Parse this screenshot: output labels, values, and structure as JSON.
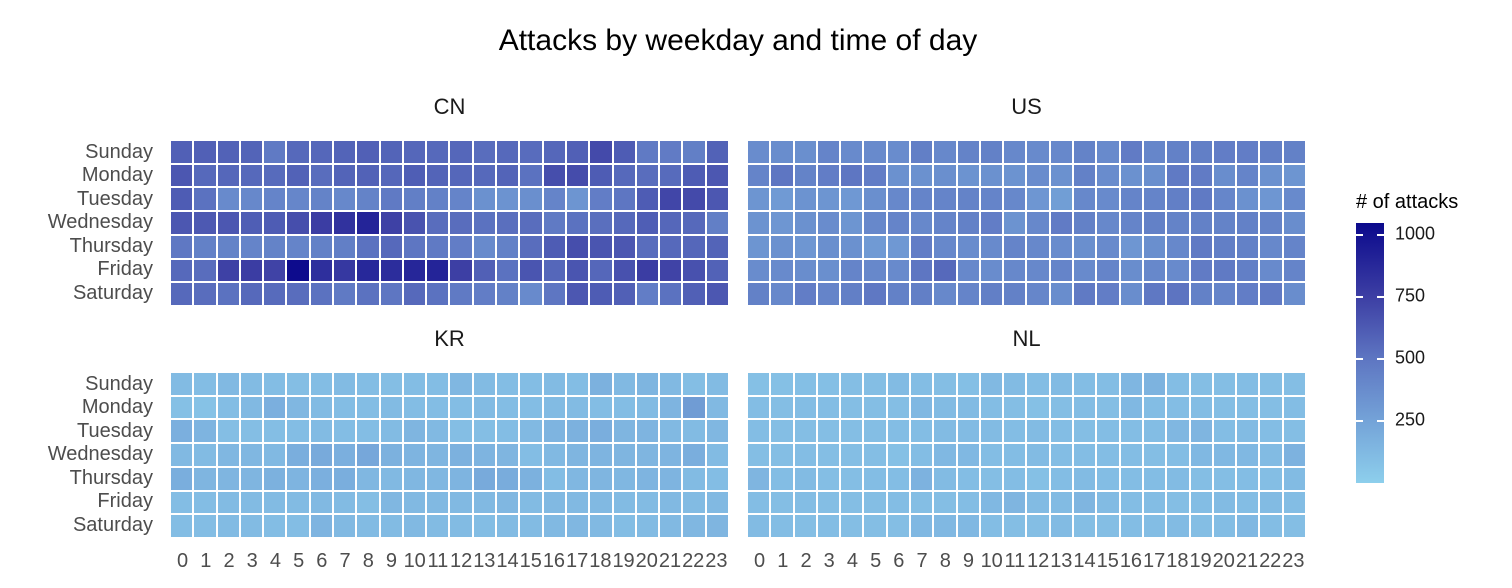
{
  "chart_data": {
    "type": "heatmap",
    "title": "Attacks by weekday and time of day",
    "legend": {
      "title": "# of attacks",
      "ticks": [
        1000,
        750,
        500,
        250
      ],
      "domain": [
        0,
        1050
      ],
      "gradient_stops": [
        {
          "value": 0,
          "color": "#8DCFEC"
        },
        {
          "value": 250,
          "color": "#74A3D8"
        },
        {
          "value": 500,
          "color": "#5E76C2"
        },
        {
          "value": 750,
          "color": "#3D3FA4"
        },
        {
          "value": 1050,
          "color": "#0B098C"
        }
      ]
    },
    "y_categories": [
      "Sunday",
      "Monday",
      "Tuesday",
      "Wednesday",
      "Thursday",
      "Friday",
      "Saturday"
    ],
    "x_categories": [
      "0",
      "1",
      "2",
      "3",
      "4",
      "5",
      "6",
      "7",
      "8",
      "9",
      "10",
      "11",
      "12",
      "13",
      "14",
      "15",
      "16",
      "17",
      "18",
      "19",
      "20",
      "21",
      "22",
      "23"
    ],
    "facets": [
      {
        "id": "cn",
        "label": "CN",
        "values": [
          [
            600,
            600,
            590,
            580,
            480,
            560,
            570,
            580,
            600,
            580,
            570,
            560,
            570,
            540,
            560,
            545,
            570,
            600,
            700,
            620,
            480,
            470,
            450,
            590
          ],
          [
            640,
            560,
            570,
            560,
            550,
            590,
            540,
            580,
            590,
            570,
            610,
            580,
            570,
            560,
            580,
            520,
            680,
            690,
            620,
            560,
            540,
            550,
            620,
            640
          ],
          [
            620,
            520,
            390,
            400,
            420,
            410,
            430,
            400,
            430,
            480,
            450,
            440,
            420,
            350,
            340,
            360,
            420,
            330,
            460,
            500,
            620,
            720,
            700,
            640
          ],
          [
            640,
            630,
            640,
            610,
            620,
            680,
            760,
            820,
            900,
            740,
            660,
            540,
            540,
            520,
            530,
            540,
            480,
            520,
            530,
            560,
            610,
            570,
            560,
            450
          ],
          [
            490,
            440,
            430,
            420,
            430,
            420,
            440,
            450,
            520,
            560,
            500,
            480,
            460,
            390,
            440,
            540,
            620,
            680,
            650,
            640,
            540,
            560,
            570,
            580
          ],
          [
            560,
            540,
            740,
            760,
            730,
            1040,
            840,
            790,
            880,
            850,
            890,
            900,
            750,
            600,
            520,
            650,
            570,
            650,
            570,
            670,
            760,
            730,
            670,
            590
          ],
          [
            560,
            540,
            520,
            560,
            550,
            540,
            520,
            480,
            520,
            500,
            560,
            520,
            480,
            460,
            440,
            390,
            500,
            640,
            620,
            600,
            460,
            520,
            600,
            640
          ]
        ]
      },
      {
        "id": "us",
        "label": "US",
        "values": [
          [
            380,
            370,
            360,
            420,
            390,
            390,
            380,
            450,
            400,
            430,
            440,
            400,
            390,
            400,
            430,
            390,
            470,
            410,
            440,
            450,
            460,
            460,
            450,
            440
          ],
          [
            420,
            500,
            430,
            460,
            500,
            460,
            350,
            350,
            360,
            340,
            350,
            340,
            380,
            350,
            440,
            380,
            350,
            360,
            480,
            470,
            370,
            420,
            350,
            330
          ],
          [
            330,
            300,
            340,
            330,
            310,
            360,
            400,
            420,
            420,
            430,
            420,
            400,
            320,
            280,
            400,
            390,
            420,
            420,
            450,
            480,
            410,
            350,
            320,
            390
          ],
          [
            340,
            320,
            350,
            380,
            330,
            400,
            420,
            400,
            420,
            440,
            460,
            340,
            400,
            470,
            440,
            400,
            420,
            440,
            430,
            440,
            430,
            440,
            430,
            370
          ],
          [
            330,
            350,
            320,
            360,
            350,
            300,
            310,
            460,
            400,
            380,
            390,
            420,
            400,
            380,
            360,
            390,
            320,
            360,
            400,
            480,
            450,
            440,
            400,
            420
          ],
          [
            380,
            390,
            370,
            360,
            420,
            400,
            390,
            500,
            560,
            400,
            380,
            400,
            400,
            420,
            390,
            420,
            370,
            400,
            390,
            470,
            480,
            450,
            390,
            420
          ],
          [
            440,
            400,
            460,
            420,
            450,
            490,
            440,
            450,
            400,
            420,
            450,
            440,
            410,
            370,
            480,
            460,
            370,
            490,
            510,
            440,
            420,
            460,
            480,
            370
          ]
        ]
      },
      {
        "id": "kr",
        "label": "KR",
        "values": [
          [
            115,
            105,
            125,
            115,
            105,
            95,
            105,
            115,
            105,
            95,
            105,
            105,
            135,
            115,
            105,
            105,
            115,
            105,
            170,
            125,
            148,
            125,
            95,
            115
          ],
          [
            85,
            75,
            105,
            125,
            180,
            135,
            115,
            105,
            105,
            115,
            105,
            105,
            105,
            115,
            105,
            105,
            115,
            115,
            105,
            105,
            115,
            155,
            290,
            125
          ],
          [
            180,
            155,
            95,
            95,
            95,
            105,
            115,
            105,
            105,
            115,
            145,
            125,
            95,
            95,
            105,
            125,
            155,
            170,
            190,
            145,
            155,
            125,
            115,
            135
          ],
          [
            125,
            115,
            135,
            135,
            125,
            190,
            210,
            180,
            230,
            170,
            155,
            145,
            170,
            155,
            145,
            105,
            125,
            145,
            155,
            145,
            145,
            155,
            190,
            115
          ],
          [
            190,
            145,
            145,
            145,
            170,
            155,
            180,
            190,
            135,
            125,
            135,
            135,
            155,
            210,
            200,
            170,
            105,
            135,
            145,
            135,
            155,
            155,
            115,
            105
          ],
          [
            105,
            105,
            115,
            115,
            115,
            115,
            125,
            115,
            95,
            135,
            125,
            125,
            125,
            125,
            135,
            115,
            125,
            125,
            125,
            115,
            115,
            125,
            115,
            125
          ],
          [
            105,
            105,
            115,
            115,
            105,
            105,
            155,
            125,
            115,
            115,
            125,
            115,
            115,
            105,
            115,
            115,
            125,
            135,
            125,
            105,
            115,
            125,
            135,
            145
          ]
        ]
      },
      {
        "id": "nl",
        "label": "NL",
        "values": [
          [
            85,
            85,
            90,
            90,
            95,
            95,
            115,
            105,
            95,
            90,
            125,
            115,
            105,
            115,
            105,
            105,
            140,
            160,
            105,
            95,
            95,
            105,
            95,
            95
          ],
          [
            105,
            95,
            105,
            105,
            95,
            95,
            95,
            130,
            115,
            115,
            105,
            95,
            85,
            95,
            105,
            95,
            130,
            105,
            105,
            105,
            95,
            95,
            95,
            105
          ],
          [
            105,
            95,
            95,
            95,
            95,
            95,
            105,
            105,
            115,
            115,
            115,
            105,
            115,
            105,
            95,
            105,
            105,
            105,
            135,
            145,
            105,
            115,
            105,
            95
          ],
          [
            95,
            95,
            105,
            95,
            95,
            95,
            85,
            105,
            130,
            130,
            105,
            105,
            115,
            105,
            105,
            105,
            105,
            95,
            105,
            130,
            130,
            130,
            115,
            165
          ],
          [
            145,
            105,
            115,
            95,
            95,
            105,
            105,
            165,
            115,
            105,
            95,
            105,
            85,
            105,
            115,
            105,
            105,
            105,
            115,
            95,
            95,
            105,
            95,
            115
          ],
          [
            105,
            95,
            105,
            95,
            95,
            95,
            105,
            95,
            95,
            105,
            130,
            145,
            115,
            115,
            145,
            115,
            105,
            105,
            95,
            105,
            115,
            105,
            115,
            105
          ],
          [
            115,
            105,
            95,
            105,
            95,
            95,
            95,
            130,
            130,
            130,
            105,
            95,
            95,
            115,
            95,
            95,
            105,
            105,
            115,
            95,
            105,
            130,
            105,
            95
          ]
        ]
      }
    ]
  }
}
